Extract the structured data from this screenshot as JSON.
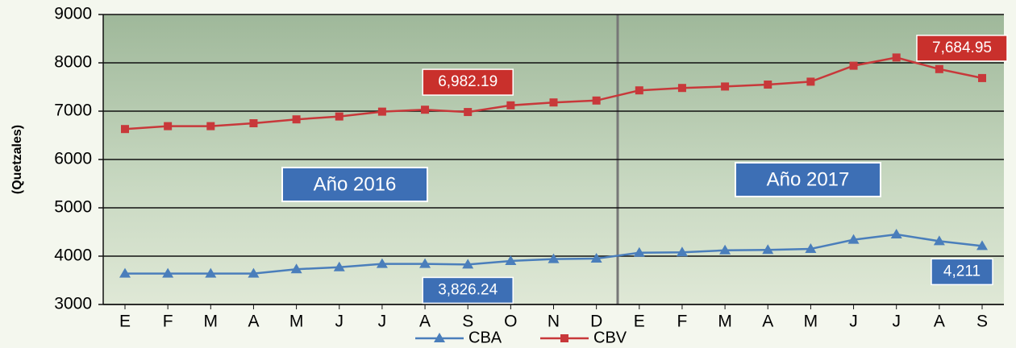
{
  "chart_data": {
    "type": "line",
    "y_label": "(Quetzales)",
    "annotations": [
      "Año 2016",
      "Año 2017"
    ],
    "categories": [
      "E",
      "F",
      "M",
      "A",
      "M",
      "J",
      "J",
      "A",
      "S",
      "O",
      "N",
      "D",
      "E",
      "F",
      "M",
      "A",
      "M",
      "J",
      "J",
      "A",
      "S"
    ],
    "series": [
      {
        "name": "CBA",
        "color": "#4a7ebb",
        "marker": "triangle",
        "values": [
          3640,
          3640,
          3640,
          3640,
          3730,
          3770,
          3840,
          3840,
          3826.24,
          3900,
          3940,
          3950,
          4070,
          4080,
          4120,
          4130,
          4150,
          4340,
          4450,
          4310,
          4211
        ],
        "value_labels": [
          null,
          null,
          null,
          null,
          null,
          null,
          null,
          null,
          "3,826.24",
          null,
          null,
          null,
          null,
          null,
          null,
          null,
          null,
          null,
          null,
          null,
          "4,211"
        ]
      },
      {
        "name": "CBV",
        "color": "#c8383a",
        "marker": "square",
        "values": [
          6630,
          6690,
          6690,
          6750,
          6830,
          6890,
          6990,
          7030,
          6982.19,
          7120,
          7180,
          7220,
          7430,
          7480,
          7510,
          7550,
          7610,
          7940,
          8110,
          7870,
          7684.95
        ],
        "value_labels": [
          null,
          null,
          null,
          null,
          null,
          null,
          null,
          null,
          "6,982.19",
          null,
          null,
          null,
          null,
          null,
          null,
          null,
          null,
          null,
          null,
          null,
          "7,684.95"
        ]
      }
    ],
    "ylim": [
      3000,
      9000
    ],
    "yticks": [
      3000,
      4000,
      5000,
      6000,
      7000,
      8000,
      9000
    ],
    "grid": true,
    "legend": "bottom"
  }
}
